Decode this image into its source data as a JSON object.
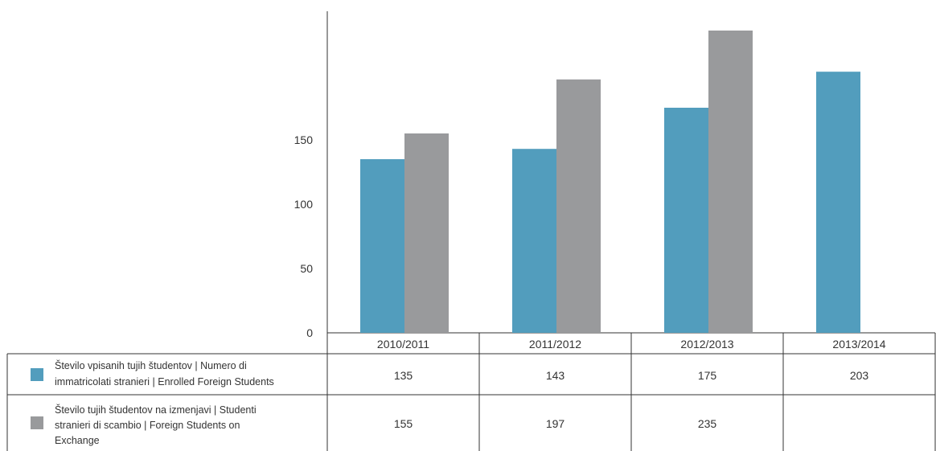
{
  "chart_data": {
    "type": "bar",
    "categories": [
      "2010/2011",
      "2011/2012",
      "2012/2013",
      "2013/2014"
    ],
    "series": [
      {
        "name": "Število vpisanih tujih študentov | Numero di immatricolati stranieri | Enrolled Foreign Students",
        "name_lines": [
          "Število vpisanih tujih študentov | Numero di",
          "immatricolati stranieri | Enrolled Foreign Students"
        ],
        "color": "#529dbd",
        "values": [
          135,
          143,
          175,
          203
        ]
      },
      {
        "name": "Število tujih študentov na izmenjavi | Studenti stranieri di scambio | Foreign Students on Exchange",
        "name_lines": [
          "Število tujih študentov na izmenjavi | Studenti",
          "stranieri di scambio | Foreign Students on",
          "Exchange"
        ],
        "color": "#999a9c",
        "values": [
          155,
          197,
          235,
          null
        ]
      }
    ],
    "table_values": [
      [
        "135",
        "143",
        "175",
        "203"
      ],
      [
        "155",
        "197",
        "235",
        ""
      ]
    ],
    "yticks": [
      "0",
      "50",
      "100",
      "150"
    ],
    "ylim": [
      0,
      235
    ],
    "legend_placement": "table-below",
    "grid": false
  }
}
